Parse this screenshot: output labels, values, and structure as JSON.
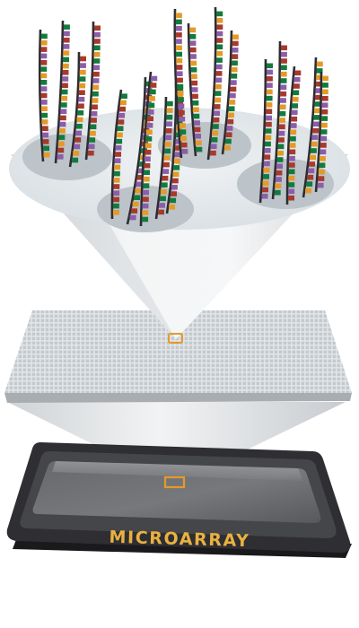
{
  "diagram": {
    "chip_label": "MICROARRAY",
    "colors": {
      "base_green": "#137a3d",
      "base_purple": "#8b5ea8",
      "base_orange": "#e39a2a",
      "base_red": "#a63a2c",
      "backbone": "#2d2d33",
      "spot": "#bcc3c9",
      "dish_top": "#e6ebee",
      "grid": "#c6cbcf",
      "chip_body": "#2c2c30",
      "chip_frame": "#4a4a4e",
      "chip_screen": "#5f6064",
      "highlight_box": "#e39a2a",
      "label": "#e9b13f"
    },
    "icons": [
      "dna-strand-icon",
      "highlight-box-icon"
    ]
  }
}
